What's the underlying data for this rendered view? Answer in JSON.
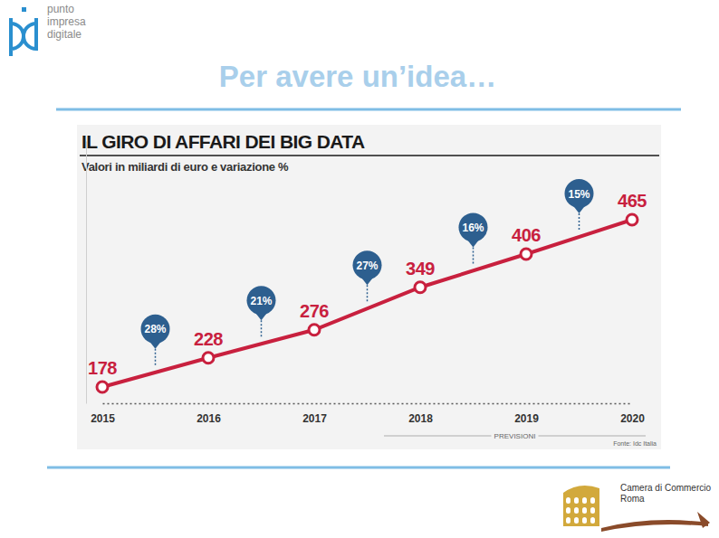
{
  "header": {
    "title": "Per avere un’idea…",
    "logo_text": [
      "punto",
      "impresa",
      "digitale"
    ]
  },
  "chart_data": {
    "type": "line",
    "title": "IL GIRO DI AFFARI DEI BIG DATA",
    "subtitle": "Valori in miliardi di euro e variazione %",
    "categories": [
      "2015",
      "2016",
      "2017",
      "2018",
      "2019",
      "2020"
    ],
    "values": [
      178,
      228,
      276,
      349,
      406,
      465
    ],
    "color": "#c8203e",
    "marker": "circle",
    "data_labels": true,
    "grid": false,
    "variations": [
      28,
      21,
      27,
      16,
      15
    ],
    "variation_labels": [
      "28%",
      "21%",
      "27%",
      "16%",
      "15%"
    ],
    "ylim": [
      150,
      600
    ],
    "yticks": [],
    "tick_labels": "x",
    "annotations": [
      {
        "text": "PREVISIONI"
      }
    ],
    "source": "Fonte: Idc Italia"
  },
  "footer": {
    "logo_text": [
      "Camera di Commercio",
      "Roma"
    ]
  }
}
